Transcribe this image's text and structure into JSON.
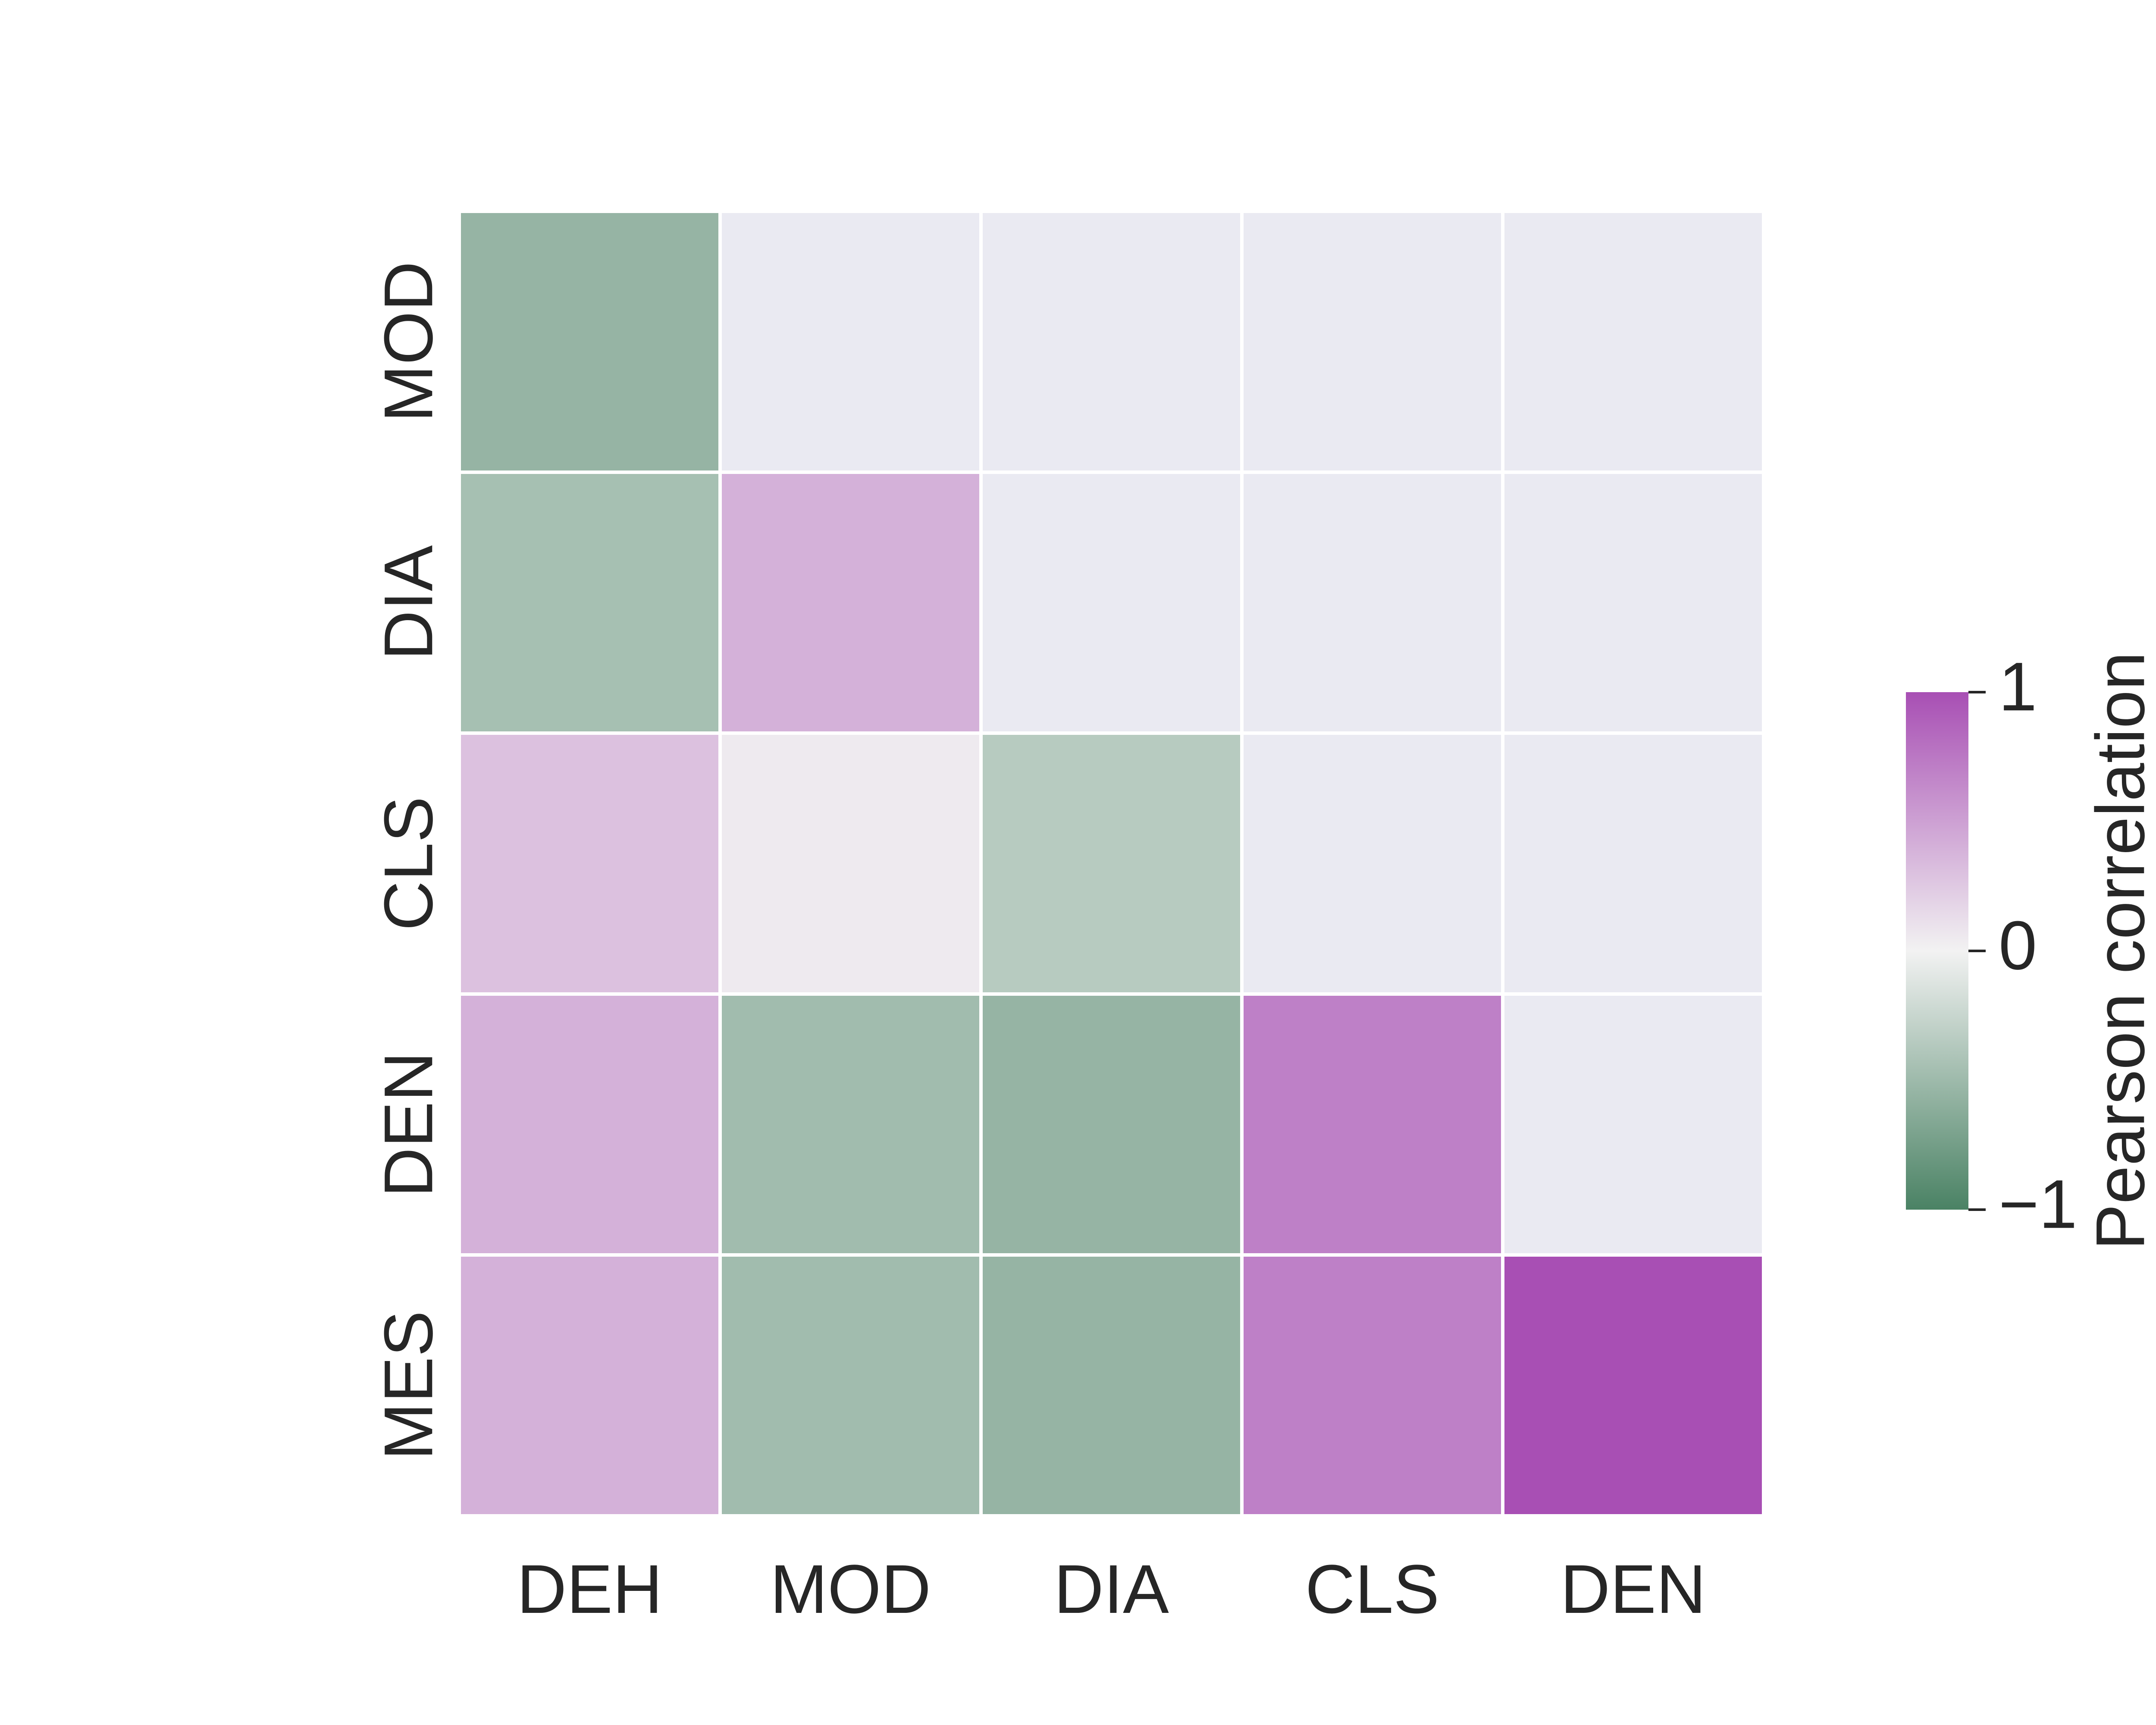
{
  "chart_data": {
    "type": "heatmap",
    "title": "",
    "xlabel": "",
    "ylabel": "",
    "x_categories": [
      "DEH",
      "MOD",
      "DIA",
      "CLS",
      "DEN"
    ],
    "y_categories": [
      "MOD",
      "DIA",
      "CLS",
      "DEN",
      "MES"
    ],
    "values": [
      [
        -0.55,
        null,
        null,
        null,
        null
      ],
      [
        -0.45,
        0.4,
        null,
        null,
        null
      ],
      [
        0.3,
        0.05,
        -0.35,
        null,
        null
      ],
      [
        0.4,
        -0.48,
        -0.55,
        0.7,
        null
      ],
      [
        0.4,
        -0.48,
        -0.55,
        0.7,
        1.0
      ]
    ],
    "mask": "upper-triangle",
    "masked_color": "#eaeaf2",
    "colorbar": {
      "label": "Pearson correlation",
      "range": [
        -1,
        1
      ],
      "ticks": [
        1,
        0,
        -1
      ],
      "tick_labels": [
        "1",
        "0",
        "−1"
      ],
      "colors": {
        "low": "#4a8264",
        "mid": "#f2f2f2",
        "high": "#a84fb4"
      },
      "placement": "right"
    },
    "grid": false
  }
}
